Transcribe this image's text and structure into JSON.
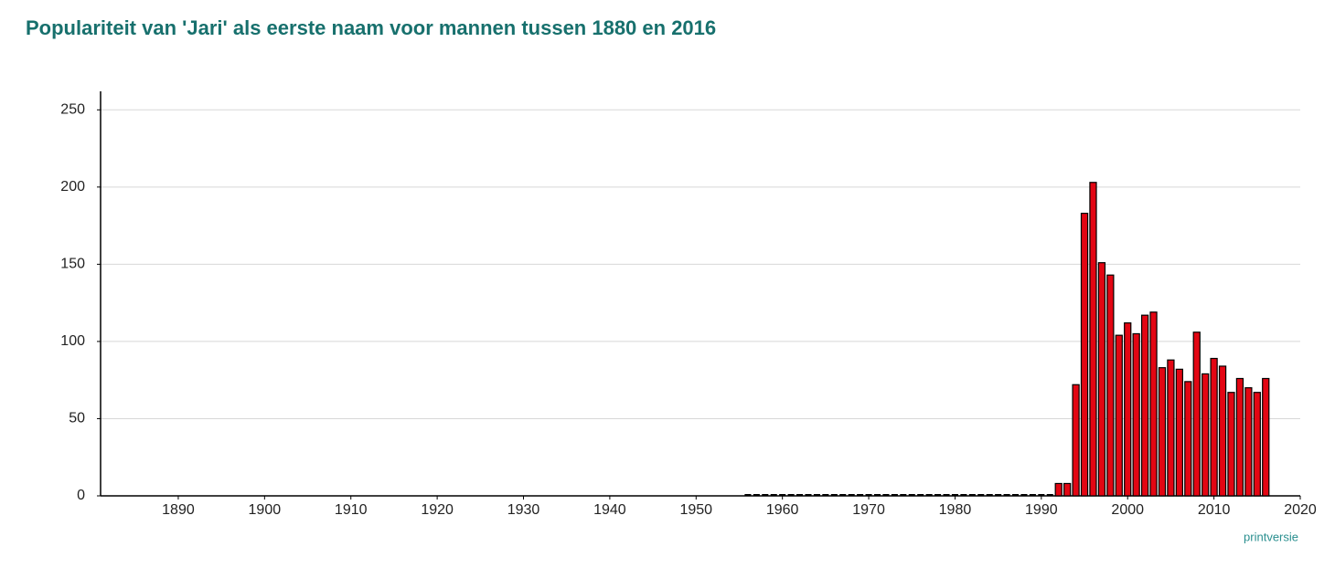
{
  "chart_data": {
    "type": "bar",
    "title": "Populariteit van 'Jari' als eerste naam voor mannen tussen 1880 en 2016",
    "x": [
      1956,
      1957,
      1958,
      1959,
      1960,
      1961,
      1962,
      1963,
      1964,
      1965,
      1966,
      1967,
      1968,
      1969,
      1970,
      1971,
      1972,
      1973,
      1974,
      1975,
      1976,
      1977,
      1978,
      1979,
      1980,
      1981,
      1982,
      1983,
      1984,
      1985,
      1986,
      1987,
      1988,
      1989,
      1990,
      1991,
      1992,
      1993,
      1994,
      1995,
      1996,
      1997,
      1998,
      1999,
      2000,
      2001,
      2002,
      2003,
      2004,
      2005,
      2006,
      2007,
      2008,
      2009,
      2010,
      2011,
      2012,
      2013,
      2014,
      2015,
      2016
    ],
    "values": [
      0,
      0,
      0,
      0,
      0,
      0,
      0,
      0,
      0,
      0,
      0,
      0,
      0,
      0,
      0,
      0,
      0,
      0,
      0,
      0,
      0,
      0,
      0,
      0,
      0,
      0,
      0,
      0,
      0,
      0,
      0,
      0,
      0,
      0,
      0,
      0,
      8,
      8,
      72,
      183,
      203,
      151,
      143,
      104,
      112,
      105,
      117,
      119,
      83,
      88,
      82,
      74,
      106,
      79,
      89,
      84,
      67,
      76,
      70,
      67,
      76
    ],
    "color": "#e30613",
    "xlim": [
      1881,
      2020
    ],
    "xticks": [
      1890,
      1900,
      1910,
      1920,
      1930,
      1940,
      1950,
      1960,
      1970,
      1980,
      1990,
      2000,
      2010,
      2020
    ],
    "ylim": [
      0,
      262
    ],
    "yticks": [
      0,
      50,
      100,
      150,
      200,
      250
    ],
    "grid": true
  },
  "link": "printversie"
}
